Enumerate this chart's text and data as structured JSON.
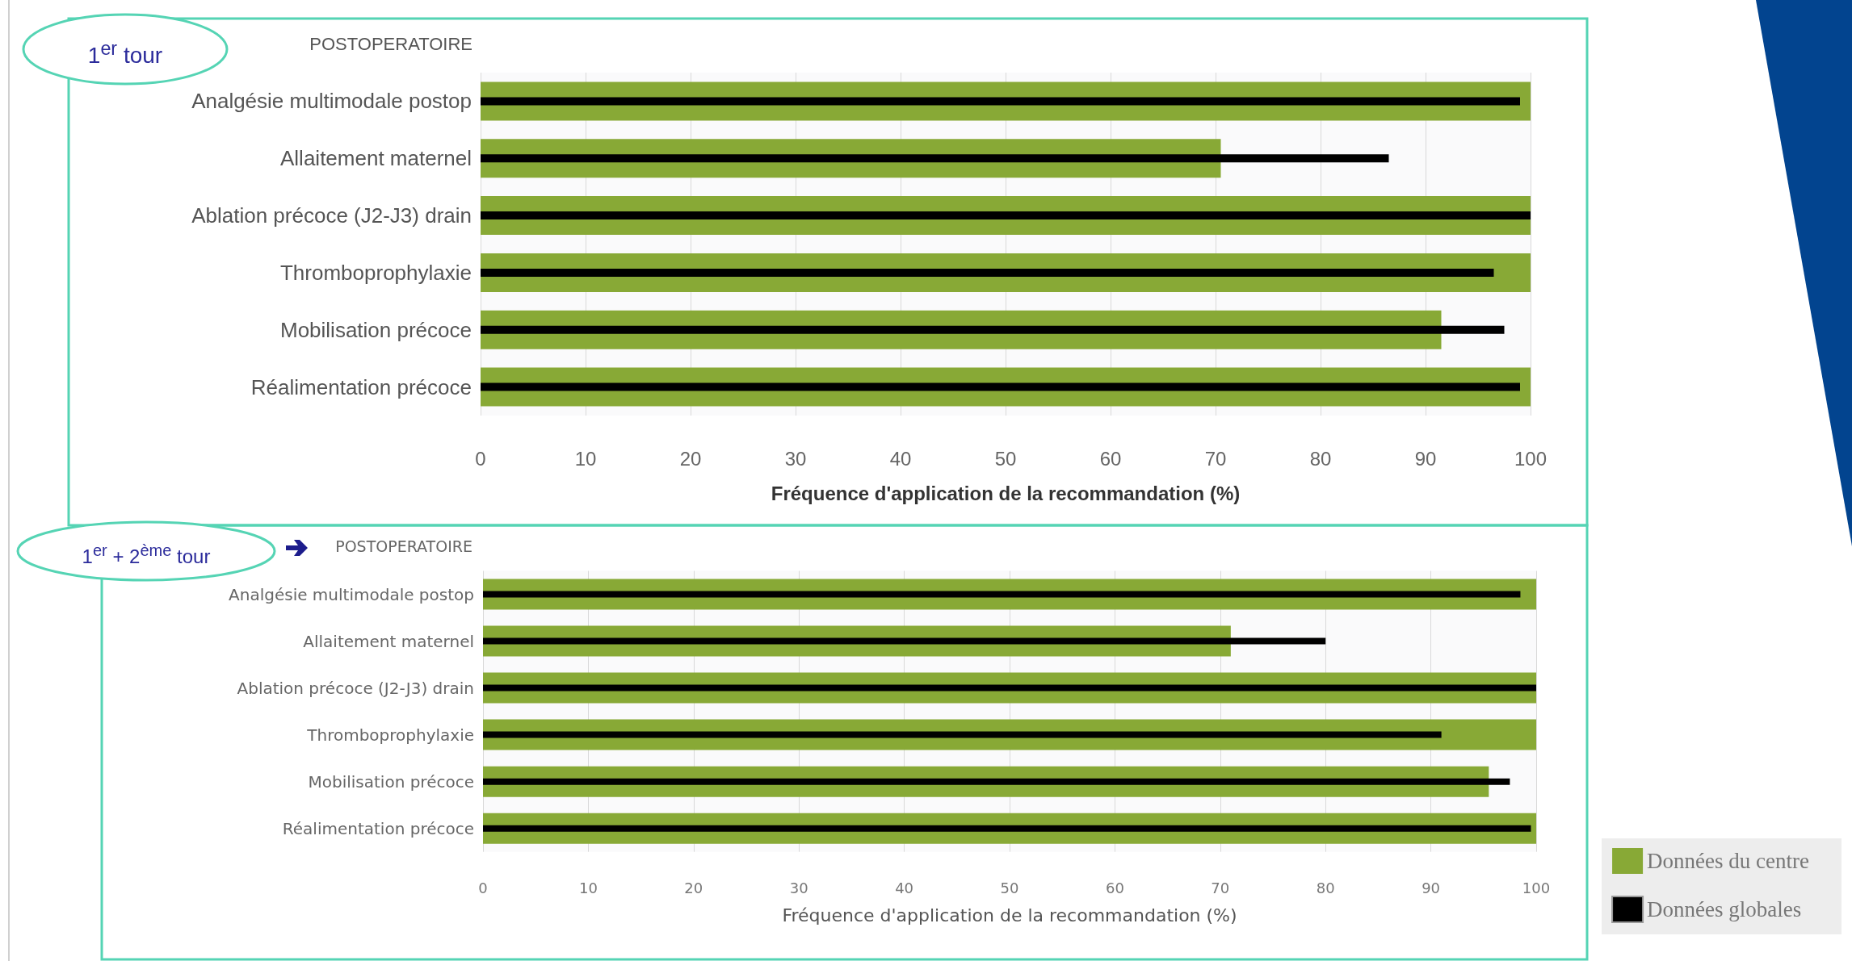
{
  "chart_data": [
    {
      "type": "bar",
      "orientation": "horizontal",
      "title": "POSTOPERATOIRE",
      "xlabel": "Fréquence d'application de la recommandation (%)",
      "annotations": [
        "1$^{er}$ tour"
      ],
      "categories": [
        "Analgésie multimodale postop",
        "Allaitement maternel",
        "Ablation précoce (J2-J3) drain",
        "Thromboprophylaxie",
        "Mobilisation précoce",
        "Réalimentation précoce"
      ],
      "series": [
        {
          "color": "#88a936",
          "values": [
            100,
            70.5,
            100,
            100,
            91.5,
            100
          ]
        },
        {
          "color": "#000000",
          "values": [
            99,
            86.5,
            100,
            96.5,
            97.5,
            99
          ]
        }
      ],
      "xlim": [
        0,
        100
      ],
      "xticks": [
        0,
        10,
        20,
        30,
        40,
        50,
        60,
        70,
        80,
        90,
        100
      ],
      "grid": "x"
    },
    {
      "type": "bar",
      "orientation": "horizontal",
      "title": "POSTOPERATOIRE",
      "xlabel": "Fréquence d'application de la recommandation (%)",
      "annotations": [
        "1$^{er}$ + 2$^{ème}$ tour"
      ],
      "categories": [
        "Analgésie multimodale postop",
        "Allaitement maternel",
        "Ablation précoce (J2-J3) drain",
        "Thromboprophylaxie",
        "Mobilisation précoce",
        "Réalimentation précoce"
      ],
      "series": [
        {
          "name": "Données du centre",
          "color": "#88a936",
          "values": [
            100,
            71,
            100,
            100,
            95.5,
            100
          ]
        },
        {
          "name": "Données globales",
          "color": "#000000",
          "values": [
            98.5,
            80,
            100,
            91,
            97.5,
            99.5
          ]
        }
      ],
      "xlim": [
        0,
        100
      ],
      "xticks": [
        0,
        10,
        20,
        30,
        40,
        50,
        60,
        70,
        80,
        90,
        100
      ],
      "grid": "x",
      "legend": "bottom right"
    }
  ]
}
